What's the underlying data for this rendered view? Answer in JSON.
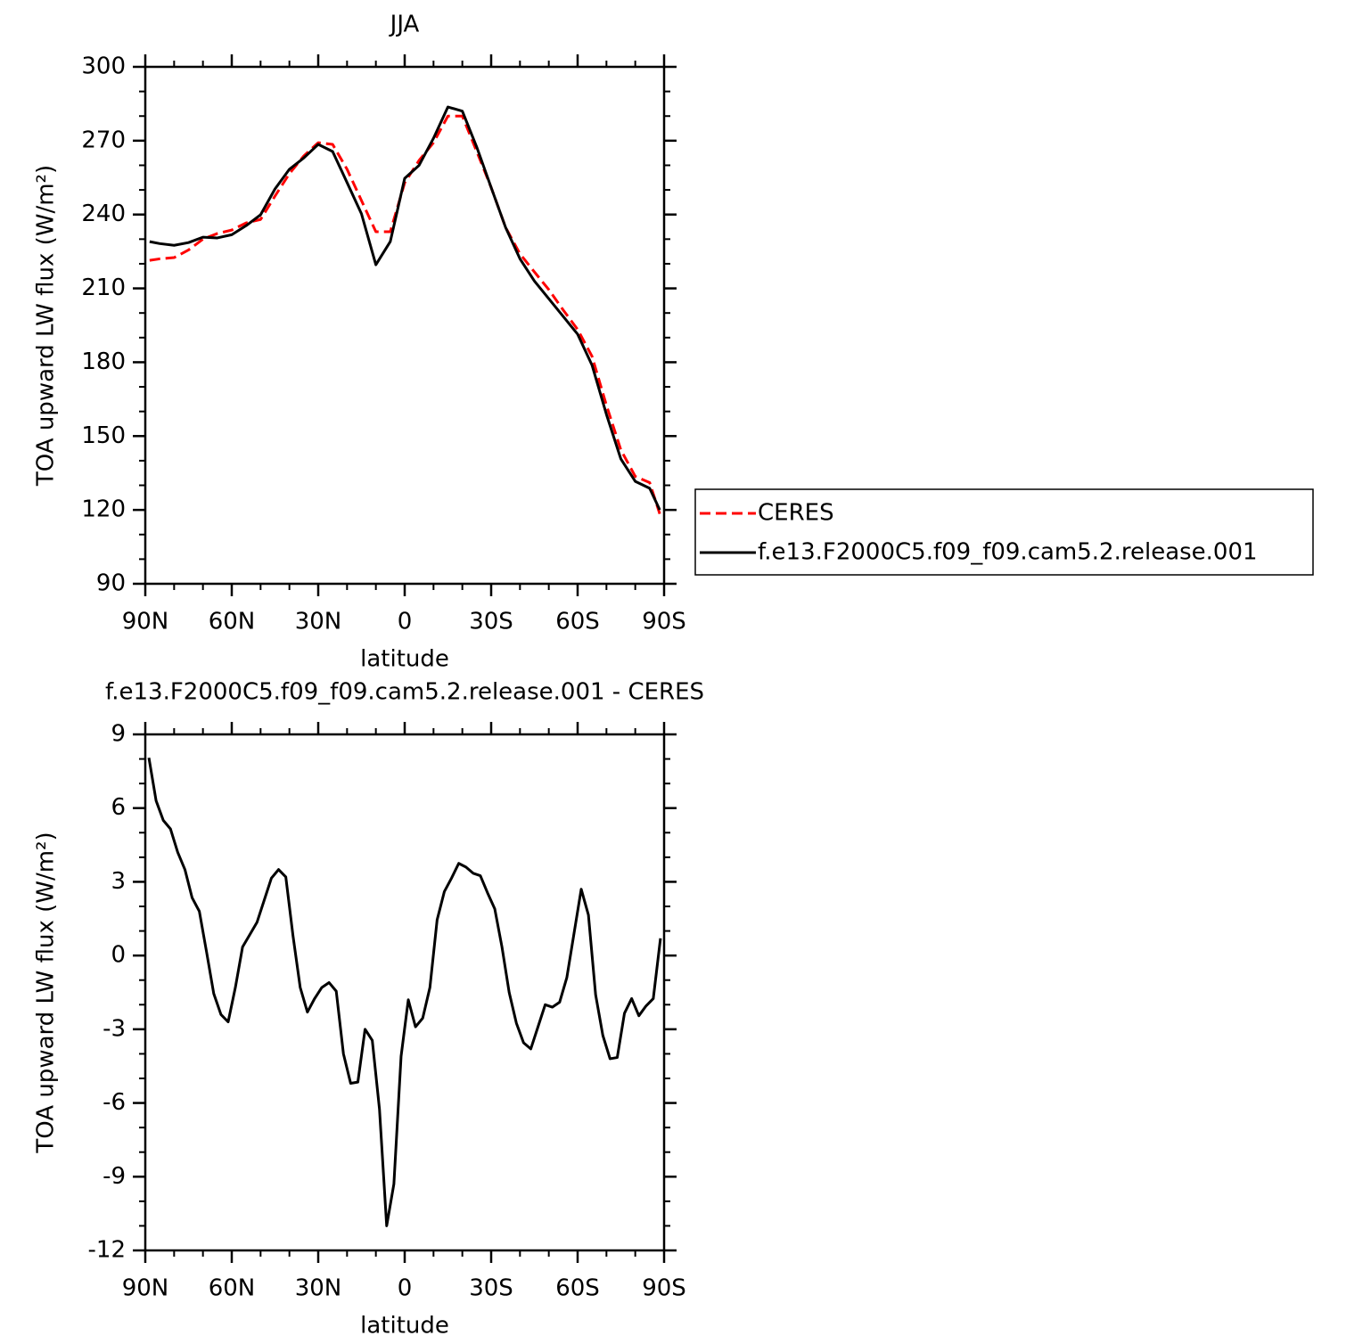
{
  "chart_data": [
    {
      "type": "line",
      "title": "JJA",
      "xlabel": "latitude",
      "ylabel": "TOA upward LW flux (W/m²)",
      "x": [
        88.5,
        85,
        80,
        75,
        70,
        65,
        60,
        55,
        50,
        45,
        40,
        35,
        30,
        25,
        20,
        15,
        10,
        5,
        0,
        -5,
        -10,
        -15,
        -20,
        -25,
        -30,
        -35,
        -40,
        -45,
        -50,
        -55,
        -60,
        -65,
        -70,
        -75,
        -80,
        -85,
        -88.5
      ],
      "series": [
        {
          "name": "CERES",
          "color": "#ff0000",
          "dash": true,
          "values": [
            221.4,
            222,
            222.5,
            225.6,
            230,
            232.3,
            233.7,
            236.6,
            238,
            247.5,
            256.6,
            263.8,
            269.2,
            268.5,
            258.4,
            245.7,
            233,
            233,
            252.9,
            262,
            269.2,
            280,
            280,
            265.6,
            251,
            234.8,
            224,
            216.7,
            209.5,
            201.2,
            193.3,
            182.4,
            162.5,
            144.4,
            133.6,
            131.1,
            118.4
          ]
        },
        {
          "name": "f.e13.F2000C5.f09_f09.cam5.2.release.001",
          "color": "#000000",
          "dash": false,
          "values": [
            229,
            228.2,
            227.5,
            228.6,
            230.8,
            230.5,
            231.8,
            235.5,
            239.9,
            250.4,
            258.4,
            263,
            268.5,
            265.6,
            253,
            240.3,
            219.6,
            229,
            254.7,
            260,
            271,
            283.7,
            282,
            267.4,
            251,
            234.8,
            222,
            213,
            205.8,
            198.6,
            191.4,
            178.8,
            158.8,
            140.7,
            131.6,
            128.8,
            120
          ]
        }
      ],
      "xlim": [
        90,
        -90
      ],
      "xticks": [
        {
          "value": 90,
          "label": "90N"
        },
        {
          "value": 60,
          "label": "60N"
        },
        {
          "value": 30,
          "label": "30N"
        },
        0,
        {
          "value": -30,
          "label": "30S"
        },
        {
          "value": -60,
          "label": "60S"
        },
        {
          "value": -90,
          "label": "90S"
        }
      ],
      "ylim": [
        90,
        300
      ],
      "yticks": [
        90,
        120,
        150,
        180,
        210,
        240,
        270,
        300
      ],
      "legend": "right"
    },
    {
      "type": "line",
      "title": "f.e13.F2000C5.f09_f09.cam5.2.release.001  -  CERES",
      "xlabel": "latitude",
      "ylabel": "TOA upward LW flux (W/m²)",
      "x": [
        88.75,
        86.25,
        83.75,
        81.25,
        78.75,
        76.25,
        73.75,
        71.25,
        68.75,
        66.25,
        63.75,
        61.25,
        58.75,
        56.25,
        53.75,
        51.25,
        48.75,
        46.25,
        43.75,
        41.25,
        38.75,
        36.25,
        33.75,
        31.25,
        28.75,
        26.25,
        23.75,
        21.25,
        18.75,
        16.25,
        13.75,
        11.25,
        8.75,
        6.25,
        3.75,
        1.25,
        -1.25,
        -3.75,
        -6.25,
        -8.75,
        -11.25,
        -13.75,
        -16.25,
        -18.75,
        -21.25,
        -23.75,
        -26.25,
        -28.75,
        -31.25,
        -33.75,
        -36.25,
        -38.75,
        -41.25,
        -43.75,
        -46.25,
        -48.75,
        -51.25,
        -53.75,
        -56.25,
        -58.75,
        -61.25,
        -63.75,
        -66.25,
        -68.75,
        -71.25,
        -73.75,
        -76.25,
        -78.75,
        -81.25,
        -83.75,
        -86.25,
        -88.75
      ],
      "series": [
        {
          "color": "#000000",
          "dash": false,
          "values": [
            8.05,
            6.3,
            5.5,
            5.15,
            4.2,
            3.5,
            2.35,
            1.8,
            0.15,
            -1.55,
            -2.4,
            -2.7,
            -1.3,
            0.35,
            0.85,
            1.35,
            2.25,
            3.15,
            3.5,
            3.2,
            0.8,
            -1.3,
            -2.3,
            -1.75,
            -1.3,
            -1.1,
            -1.45,
            -4.0,
            -5.2,
            -5.15,
            -3.0,
            -3.45,
            -6.25,
            -11.0,
            -9.3,
            -4.1,
            -1.8,
            -2.9,
            -2.55,
            -1.3,
            1.45,
            2.6,
            3.15,
            3.75,
            3.6,
            3.35,
            3.25,
            2.55,
            1.9,
            0.35,
            -1.5,
            -2.75,
            -3.55,
            -3.8,
            -2.9,
            -2.0,
            -2.1,
            -1.9,
            -0.9,
            0.9,
            2.7,
            1.65,
            -1.6,
            -3.25,
            -4.2,
            -4.15,
            -2.35,
            -1.75,
            -2.45,
            -2.05,
            -1.75,
            0.7
          ]
        }
      ],
      "xlim": [
        90,
        -90
      ],
      "xticks": [
        {
          "value": 90,
          "label": "90N"
        },
        {
          "value": 60,
          "label": "60N"
        },
        {
          "value": 30,
          "label": "30N"
        },
        0,
        {
          "value": -30,
          "label": "30S"
        },
        {
          "value": -60,
          "label": "60S"
        },
        {
          "value": -90,
          "label": "90S"
        }
      ],
      "ylim": [
        -12,
        9
      ],
      "yticks": [
        -12,
        -9,
        -6,
        -3,
        0,
        3,
        6,
        9
      ]
    }
  ]
}
